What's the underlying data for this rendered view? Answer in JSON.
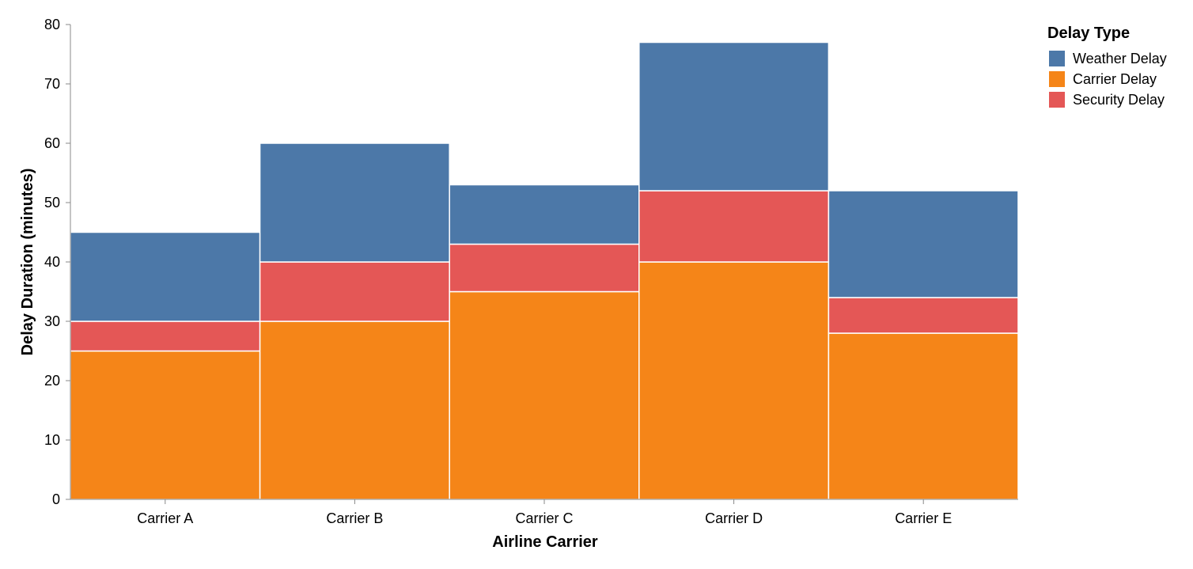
{
  "chart_data": {
    "type": "bar",
    "stacked": true,
    "categories": [
      "Carrier A",
      "Carrier B",
      "Carrier C",
      "Carrier D",
      "Carrier E"
    ],
    "series": [
      {
        "name": "Carrier Delay",
        "color": "#f58518",
        "values": [
          25,
          30,
          35,
          40,
          28
        ]
      },
      {
        "name": "Security Delay",
        "color": "#e45756",
        "values": [
          5,
          10,
          8,
          12,
          6
        ]
      },
      {
        "name": "Weather Delay",
        "color": "#4c78a8",
        "values": [
          15,
          20,
          10,
          25,
          18
        ]
      }
    ],
    "xlabel": "Airline Carrier",
    "ylabel": "Delay Duration (minutes)",
    "ylim": [
      0,
      80
    ],
    "yticks": [
      0,
      10,
      20,
      30,
      40,
      50,
      60,
      70,
      80
    ],
    "grid": false,
    "legend": {
      "title": "Delay Type",
      "placement": "top-right",
      "entries": [
        {
          "label": "Weather Delay",
          "color": "#4c78a8"
        },
        {
          "label": "Carrier Delay",
          "color": "#f58518"
        },
        {
          "label": "Security Delay",
          "color": "#e45756"
        }
      ]
    }
  }
}
